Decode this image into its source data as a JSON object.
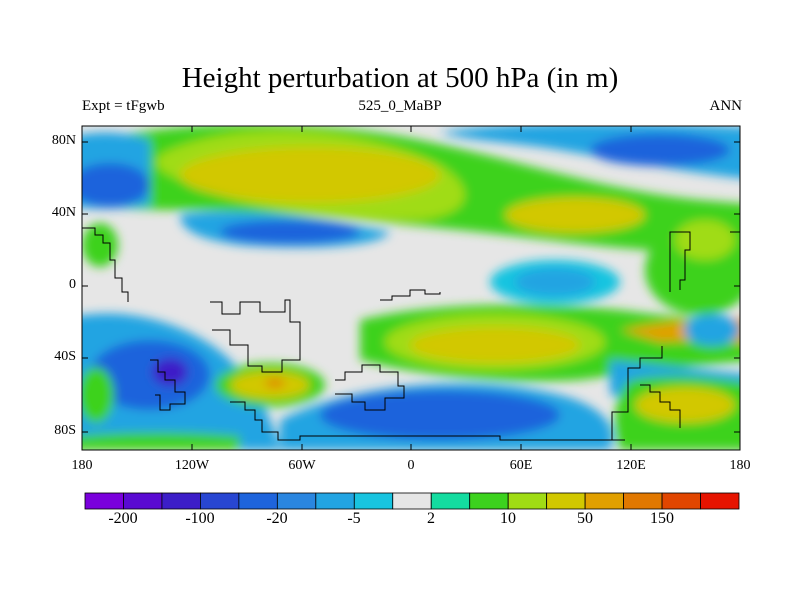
{
  "map": {
    "title": "Height perturbation at 500 hPa (in m)",
    "left_string": "Expt = tFgwb",
    "center_string": "525_0_MaBP",
    "right_string": "ANN",
    "projection": "cylindrical equidistant",
    "lon_range": [
      -180,
      180
    ],
    "lat_range": [
      -90,
      90
    ],
    "lat_ticks": [
      "80N",
      "40N",
      "0",
      "40S",
      "80S"
    ],
    "lon_ticks": [
      "180",
      "120W",
      "60W",
      "0",
      "60E",
      "120E",
      "180"
    ]
  },
  "colorbar": {
    "orientation": "horizontal",
    "colors": [
      "#7a00dc",
      "#5a0ad2",
      "#3c1ec8",
      "#2846d2",
      "#1e64dc",
      "#2a86e0",
      "#22a4e2",
      "#18c4e0",
      "#e6e6e6",
      "#14dca0",
      "#3cd21e",
      "#a0dc14",
      "#d2c800",
      "#e1a000",
      "#e17800",
      "#e14600",
      "#e61400"
    ],
    "labels": [
      "-200",
      "-100",
      "-20",
      "-5",
      "2",
      "10",
      "50",
      "150"
    ]
  },
  "icons": {
    "coastline": "black-outline"
  }
}
